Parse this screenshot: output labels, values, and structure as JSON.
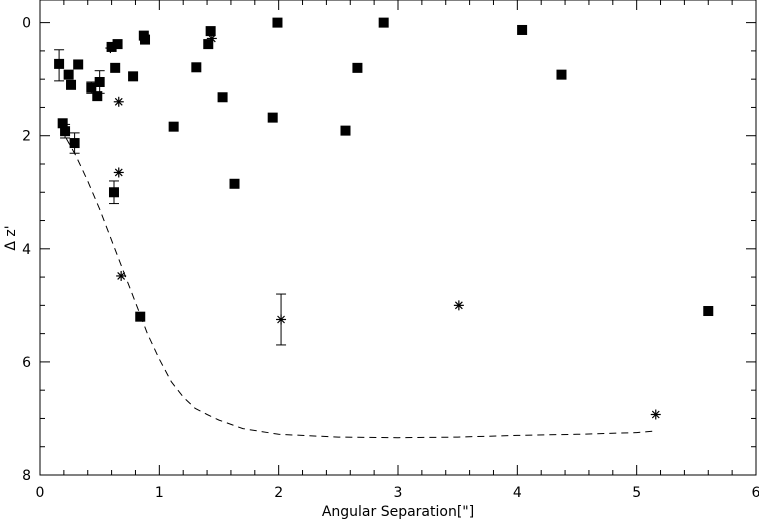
{
  "chart_data": {
    "type": "scatter",
    "title": "",
    "xlabel": "Angular Separation[\"]",
    "ylabel": "Δ z'",
    "xlim": [
      0,
      6
    ],
    "ylim": [
      8,
      -0.4
    ],
    "y_inverted": true,
    "grid": false,
    "xticks": {
      "major": [
        "0",
        "1",
        "2",
        "3",
        "4",
        "5",
        "6"
      ],
      "minor_step": 0.2
    },
    "yticks": {
      "major": [
        "0",
        "2",
        "4",
        "6",
        "8"
      ],
      "minor_step": 0.5
    },
    "series": [
      {
        "marker": "square",
        "points": [
          [
            0.16,
            0.73
          ],
          [
            0.19,
            1.78
          ],
          [
            0.21,
            1.92
          ],
          [
            0.24,
            0.92
          ],
          [
            0.26,
            1.1
          ],
          [
            0.29,
            2.13
          ],
          [
            0.32,
            0.74
          ],
          [
            0.43,
            1.15
          ],
          [
            0.48,
            1.3
          ],
          [
            0.5,
            1.05
          ],
          [
            0.6,
            0.43
          ],
          [
            0.62,
            3.0
          ],
          [
            0.63,
            0.8
          ],
          [
            0.65,
            0.38
          ],
          [
            0.78,
            0.95
          ],
          [
            0.84,
            5.2
          ],
          [
            0.87,
            0.23
          ],
          [
            0.88,
            0.3
          ],
          [
            1.12,
            1.84
          ],
          [
            1.31,
            0.79
          ],
          [
            1.41,
            0.38
          ],
          [
            1.43,
            0.15
          ],
          [
            1.53,
            1.32
          ],
          [
            1.63,
            2.85
          ],
          [
            1.95,
            1.68
          ],
          [
            1.99,
            0.0
          ],
          [
            2.56,
            1.91
          ],
          [
            2.66,
            0.8
          ],
          [
            2.88,
            0.0
          ],
          [
            4.04,
            0.13
          ],
          [
            4.37,
            0.92
          ],
          [
            5.6,
            5.1
          ]
        ],
        "errors": [
          {
            "x": 0.16,
            "y": 0.73,
            "lo": 0.25,
            "hi": 0.3
          },
          {
            "x": 0.21,
            "y": 1.92,
            "lo": 0.12,
            "hi": 0.12
          },
          {
            "x": 0.29,
            "y": 2.13,
            "lo": 0.18,
            "hi": 0.18
          },
          {
            "x": 0.43,
            "y": 1.15,
            "lo": 0.1,
            "hi": 0.1
          },
          {
            "x": 0.5,
            "y": 1.05,
            "lo": 0.2,
            "hi": 0.2
          },
          {
            "x": 0.62,
            "y": 3.0,
            "lo": 0.2,
            "hi": 0.2
          }
        ]
      },
      {
        "marker": "asterisk",
        "points": [
          [
            0.59,
            0.45
          ],
          [
            0.66,
            1.4
          ],
          [
            0.66,
            2.65
          ],
          [
            0.68,
            4.48
          ],
          [
            1.44,
            0.28
          ],
          [
            2.02,
            5.25
          ],
          [
            3.51,
            5.0
          ],
          [
            5.16,
            6.93
          ]
        ],
        "errors": [
          {
            "x": 2.02,
            "y": 5.25,
            "lo": 0.45,
            "hi": 0.45
          }
        ]
      }
    ],
    "dashed_curve": {
      "x": [
        0.22,
        0.3,
        0.4,
        0.5,
        0.6,
        0.7,
        0.8,
        0.9,
        1.0,
        1.1,
        1.2,
        1.3,
        1.4,
        1.5,
        1.7,
        2.0,
        2.5,
        3.0,
        3.5,
        4.0,
        4.5,
        5.0,
        5.16
      ],
      "y": [
        2.05,
        2.35,
        2.8,
        3.3,
        3.85,
        4.4,
        4.95,
        5.5,
        5.95,
        6.35,
        6.62,
        6.82,
        6.93,
        7.03,
        7.18,
        7.28,
        7.33,
        7.34,
        7.33,
        7.3,
        7.28,
        7.25,
        7.22
      ]
    }
  }
}
